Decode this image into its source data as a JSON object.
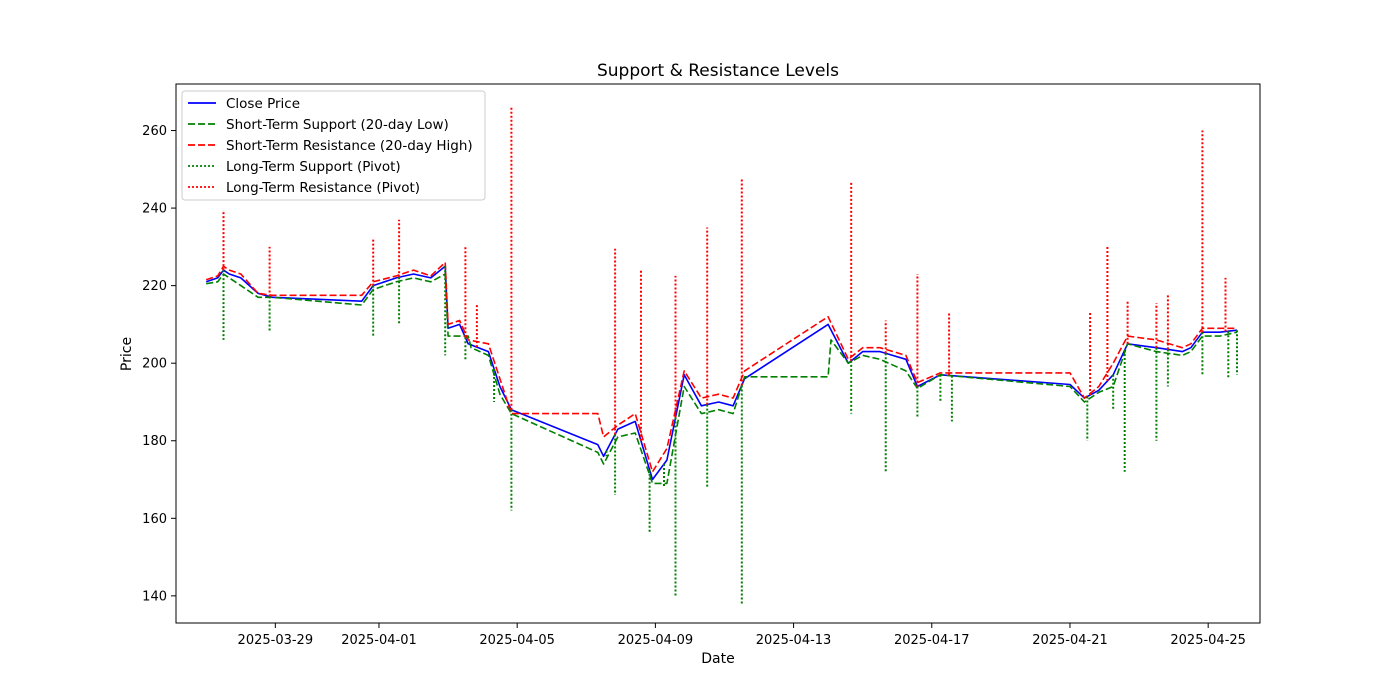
{
  "chart_data": {
    "type": "line",
    "title": "Support & Resistance Levels",
    "xlabel": "Date",
    "ylabel": "Price",
    "x_ticks": [
      "2025-03-29",
      "2025-04-01",
      "2025-04-05",
      "2025-04-09",
      "2025-04-13",
      "2025-04-17",
      "2025-04-21",
      "2025-04-25"
    ],
    "y_ticks": [
      140,
      160,
      180,
      200,
      220,
      240,
      260
    ],
    "xlim": [
      "2025-03-26T03:00",
      "2025-04-26T12:00"
    ],
    "ylim": [
      133,
      272
    ],
    "grid": false,
    "legend_position": "top-left",
    "colors": {
      "close": "#0000ff",
      "support": "#008000",
      "resistance": "#ff0000"
    },
    "series": [
      {
        "name": "Close Price",
        "color": "#0000ff",
        "style": "solid",
        "points": [
          [
            "2025-03-27T00:00",
            221
          ],
          [
            "2025-03-27T08:00",
            222
          ],
          [
            "2025-03-27T12:00",
            224
          ],
          [
            "2025-03-27T16:00",
            223
          ],
          [
            "2025-03-28T00:00",
            222
          ],
          [
            "2025-03-28T12:00",
            218
          ],
          [
            "2025-03-28T22:00",
            217
          ],
          [
            "2025-03-31T12:00",
            216
          ],
          [
            "2025-03-31T20:00",
            220
          ],
          [
            "2025-04-01T12:00",
            222
          ],
          [
            "2025-04-02T00:00",
            223
          ],
          [
            "2025-04-02T12:00",
            222
          ],
          [
            "2025-04-02T22:00",
            225
          ],
          [
            "2025-04-03T00:00",
            209
          ],
          [
            "2025-04-03T08:00",
            210
          ],
          [
            "2025-04-03T14:00",
            205
          ],
          [
            "2025-04-04T04:00",
            203
          ],
          [
            "2025-04-04T12:00",
            194
          ],
          [
            "2025-04-04T20:00",
            188
          ],
          [
            "2025-04-07T08:00",
            179
          ],
          [
            "2025-04-07T12:00",
            176
          ],
          [
            "2025-04-07T22:00",
            183
          ],
          [
            "2025-04-08T10:00",
            185
          ],
          [
            "2025-04-08T22:00",
            170
          ],
          [
            "2025-04-09T08:00",
            175
          ],
          [
            "2025-04-09T20:00",
            197
          ],
          [
            "2025-04-10T08:00",
            189
          ],
          [
            "2025-04-10T20:00",
            190
          ],
          [
            "2025-04-11T06:00",
            189
          ],
          [
            "2025-04-11T14:00",
            196
          ],
          [
            "2025-04-14T00:00",
            210
          ],
          [
            "2025-04-14T14:00",
            200
          ],
          [
            "2025-04-15T00:00",
            203
          ],
          [
            "2025-04-15T12:00",
            203
          ],
          [
            "2025-04-16T06:00",
            201
          ],
          [
            "2025-04-16T14:00",
            194
          ],
          [
            "2025-04-17T06:00",
            197
          ],
          [
            "2025-04-21T00:00",
            194.5
          ],
          [
            "2025-04-21T10:00",
            191
          ],
          [
            "2025-04-21T20:00",
            193
          ],
          [
            "2025-04-22T06:00",
            197
          ],
          [
            "2025-04-22T16:00",
            205
          ],
          [
            "2025-04-23T12:00",
            204
          ],
          [
            "2025-04-24T06:00",
            203
          ],
          [
            "2025-04-24T12:00",
            204
          ],
          [
            "2025-04-24T20:00",
            208
          ],
          [
            "2025-04-25T08:00",
            208
          ],
          [
            "2025-04-25T20:00",
            208.5
          ]
        ]
      },
      {
        "name": "Short-Term Support (20-day Low)",
        "color": "#008000",
        "style": "dashed",
        "points": [
          [
            "2025-03-27T00:00",
            220.5
          ],
          [
            "2025-03-27T08:00",
            221
          ],
          [
            "2025-03-27T12:00",
            223
          ],
          [
            "2025-03-27T16:00",
            222
          ],
          [
            "2025-03-28T00:00",
            220
          ],
          [
            "2025-03-28T12:00",
            217
          ],
          [
            "2025-03-28T22:00",
            217
          ],
          [
            "2025-03-31T12:00",
            215
          ],
          [
            "2025-03-31T20:00",
            219
          ],
          [
            "2025-04-01T12:00",
            221
          ],
          [
            "2025-04-02T00:00",
            222
          ],
          [
            "2025-04-02T12:00",
            221
          ],
          [
            "2025-04-02T22:00",
            223
          ],
          [
            "2025-04-03T00:00",
            207
          ],
          [
            "2025-04-03T14:00",
            207
          ],
          [
            "2025-04-03T16:00",
            204
          ],
          [
            "2025-04-04T04:00",
            202
          ],
          [
            "2025-04-04T12:00",
            192
          ],
          [
            "2025-04-04T20:00",
            187
          ],
          [
            "2025-04-07T08:00",
            177
          ],
          [
            "2025-04-07T12:00",
            174
          ],
          [
            "2025-04-07T22:00",
            181
          ],
          [
            "2025-04-08T10:00",
            182
          ],
          [
            "2025-04-08T22:00",
            169
          ],
          [
            "2025-04-09T08:00",
            169
          ],
          [
            "2025-04-09T20:00",
            194
          ],
          [
            "2025-04-10T08:00",
            187
          ],
          [
            "2025-04-10T20:00",
            188
          ],
          [
            "2025-04-11T06:00",
            187
          ],
          [
            "2025-04-11T14:00",
            196.5
          ],
          [
            "2025-04-14T00:00",
            196.5
          ],
          [
            "2025-04-14T02:00",
            206
          ],
          [
            "2025-04-14T14:00",
            200
          ],
          [
            "2025-04-15T00:00",
            202
          ],
          [
            "2025-04-15T12:00",
            201
          ],
          [
            "2025-04-16T06:00",
            198
          ],
          [
            "2025-04-16T14:00",
            193.5
          ],
          [
            "2025-04-17T06:00",
            197
          ],
          [
            "2025-04-21T00:00",
            194
          ],
          [
            "2025-04-21T10:00",
            190
          ],
          [
            "2025-04-21T20:00",
            192.5
          ],
          [
            "2025-04-22T06:00",
            194
          ],
          [
            "2025-04-22T16:00",
            205
          ],
          [
            "2025-04-23T12:00",
            203
          ],
          [
            "2025-04-24T06:00",
            202
          ],
          [
            "2025-04-24T12:00",
            203
          ],
          [
            "2025-04-24T20:00",
            207
          ],
          [
            "2025-04-25T08:00",
            207
          ],
          [
            "2025-04-25T20:00",
            208
          ]
        ]
      },
      {
        "name": "Short-Term Resistance (20-day High)",
        "color": "#ff0000",
        "style": "dashed",
        "points": [
          [
            "2025-03-27T00:00",
            221.5
          ],
          [
            "2025-03-27T08:00",
            222.5
          ],
          [
            "2025-03-27T12:00",
            225
          ],
          [
            "2025-03-27T16:00",
            224
          ],
          [
            "2025-03-28T00:00",
            223
          ],
          [
            "2025-03-28T12:00",
            218
          ],
          [
            "2025-03-28T22:00",
            217.5
          ],
          [
            "2025-03-31T12:00",
            217.5
          ],
          [
            "2025-03-31T20:00",
            221
          ],
          [
            "2025-04-01T12:00",
            222.5
          ],
          [
            "2025-04-02T00:00",
            224
          ],
          [
            "2025-04-02T12:00",
            222.5
          ],
          [
            "2025-04-02T22:00",
            226
          ],
          [
            "2025-04-03T00:00",
            210
          ],
          [
            "2025-04-03T08:00",
            211
          ],
          [
            "2025-04-03T14:00",
            206
          ],
          [
            "2025-04-04T04:00",
            205
          ],
          [
            "2025-04-04T12:00",
            196
          ],
          [
            "2025-04-04T20:00",
            187
          ],
          [
            "2025-04-07T08:00",
            187
          ],
          [
            "2025-04-07T12:00",
            181
          ],
          [
            "2025-04-07T22:00",
            184
          ],
          [
            "2025-04-08T10:00",
            187
          ],
          [
            "2025-04-08T22:00",
            172
          ],
          [
            "2025-04-09T08:00",
            178
          ],
          [
            "2025-04-09T20:00",
            198
          ],
          [
            "2025-04-10T08:00",
            191
          ],
          [
            "2025-04-10T20:00",
            192
          ],
          [
            "2025-04-11T06:00",
            191
          ],
          [
            "2025-04-11T14:00",
            198
          ],
          [
            "2025-04-14T00:00",
            212
          ],
          [
            "2025-04-14T14:00",
            201
          ],
          [
            "2025-04-15T00:00",
            204
          ],
          [
            "2025-04-15T12:00",
            204
          ],
          [
            "2025-04-16T06:00",
            202
          ],
          [
            "2025-04-16T14:00",
            195
          ],
          [
            "2025-04-17T06:00",
            197.5
          ],
          [
            "2025-04-21T00:00",
            197.5
          ],
          [
            "2025-04-21T10:00",
            191
          ],
          [
            "2025-04-21T20:00",
            194
          ],
          [
            "2025-04-22T06:00",
            200
          ],
          [
            "2025-04-22T16:00",
            207
          ],
          [
            "2025-04-23T12:00",
            206
          ],
          [
            "2025-04-24T06:00",
            204
          ],
          [
            "2025-04-24T12:00",
            205
          ],
          [
            "2025-04-24T20:00",
            209
          ],
          [
            "2025-04-25T08:00",
            209
          ],
          [
            "2025-04-25T20:00",
            209
          ]
        ]
      },
      {
        "name": "Long-Term Support (Pivot)",
        "color": "#008000",
        "style": "dotted",
        "spikes": [
          [
            "2025-03-27T12:00",
            206
          ],
          [
            "2025-03-28T20:00",
            208
          ],
          [
            "2025-03-31T20:00",
            207
          ],
          [
            "2025-04-01T14:00",
            210
          ],
          [
            "2025-04-02T22:00",
            202
          ],
          [
            "2025-04-03T12:00",
            201
          ],
          [
            "2025-04-04T08:00",
            190
          ],
          [
            "2025-04-04T20:00",
            162
          ],
          [
            "2025-04-07T14:00",
            176
          ],
          [
            "2025-04-07T20:00",
            166
          ],
          [
            "2025-04-08T20:00",
            156
          ],
          [
            "2025-04-09T06:00",
            168
          ],
          [
            "2025-04-09T14:00",
            140
          ],
          [
            "2025-04-10T12:00",
            168
          ],
          [
            "2025-04-11T12:00",
            138
          ],
          [
            "2025-04-14T16:00",
            187
          ],
          [
            "2025-04-15T16:00",
            172
          ],
          [
            "2025-04-16T14:00",
            186
          ],
          [
            "2025-04-17T06:00",
            190
          ],
          [
            "2025-04-17T14:00",
            185
          ],
          [
            "2025-04-21T12:00",
            180
          ],
          [
            "2025-04-22T06:00",
            188
          ],
          [
            "2025-04-22T14:00",
            172
          ],
          [
            "2025-04-23T12:00",
            180
          ],
          [
            "2025-04-23T20:00",
            194
          ],
          [
            "2025-04-24T20:00",
            197
          ],
          [
            "2025-04-25T14:00",
            196
          ],
          [
            "2025-04-25T20:00",
            197
          ]
        ]
      },
      {
        "name": "Long-Term Resistance (Pivot)",
        "color": "#ff0000",
        "style": "dotted",
        "spikes": [
          [
            "2025-03-27T12:00",
            239.5
          ],
          [
            "2025-03-28T20:00",
            230
          ],
          [
            "2025-03-31T20:00",
            232
          ],
          [
            "2025-04-01T14:00",
            237
          ],
          [
            "2025-04-03T12:00",
            230
          ],
          [
            "2025-04-03T20:00",
            215
          ],
          [
            "2025-04-04T20:00",
            266
          ],
          [
            "2025-04-07T20:00",
            229.5
          ],
          [
            "2025-04-08T14:00",
            224
          ],
          [
            "2025-04-09T14:00",
            222.5
          ],
          [
            "2025-04-10T12:00",
            235
          ],
          [
            "2025-04-11T12:00",
            247.5
          ],
          [
            "2025-04-14T16:00",
            247
          ],
          [
            "2025-04-15T16:00",
            211
          ],
          [
            "2025-04-16T14:00",
            223
          ],
          [
            "2025-04-17T12:00",
            213
          ],
          [
            "2025-04-21T14:00",
            213
          ],
          [
            "2025-04-22T02:00",
            230
          ],
          [
            "2025-04-22T16:00",
            216
          ],
          [
            "2025-04-23T12:00",
            215.5
          ],
          [
            "2025-04-23T20:00",
            218
          ],
          [
            "2025-04-24T20:00",
            260
          ],
          [
            "2025-04-25T12:00",
            222
          ]
        ]
      }
    ]
  }
}
